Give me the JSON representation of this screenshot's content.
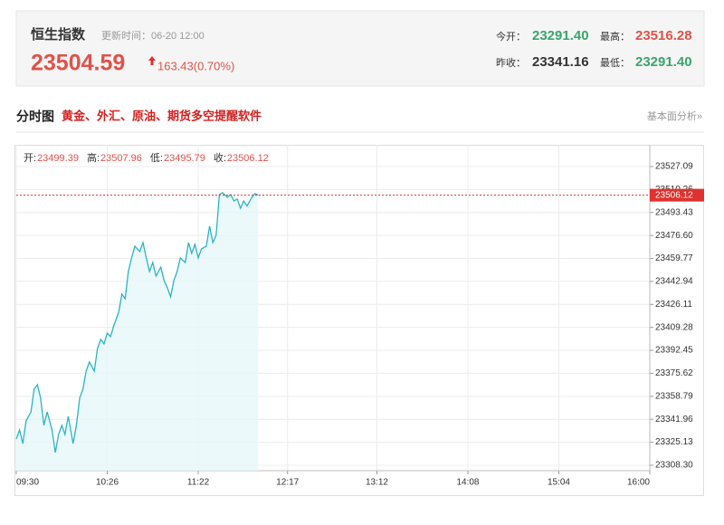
{
  "header": {
    "title": "恒生指数",
    "update": "更新时间：06-20 12:00",
    "price": "23504.59",
    "change": "163.43(0.70%)",
    "open_label": "今开：",
    "open": "23291.40",
    "high_label": "最高：",
    "high": "23516.28",
    "prev_label": "昨收：",
    "prev": "23341.16",
    "low_label": "最低：",
    "low": "23291.40"
  },
  "section": {
    "title": "分时图",
    "promo": "黄金、外汇、原油、期货多空提醒软件",
    "link": "基本面分析»"
  },
  "chart_data": {
    "type": "line",
    "color": "#2bb5c2",
    "area": true,
    "grid": true,
    "summary": [
      {
        "label": "开:",
        "value": 23499.39
      },
      {
        "label": "高:",
        "value": 23507.96
      },
      {
        "label": "低:",
        "value": 23495.79
      },
      {
        "label": "收:",
        "value": 23506.12
      }
    ],
    "reference_line": {
      "value": 23506.12,
      "color": "#e0312e"
    },
    "x": [
      570,
      572,
      574,
      576,
      579,
      581,
      583,
      585,
      587,
      589,
      592,
      594,
      596,
      598,
      600,
      602,
      605,
      607,
      609,
      611,
      613,
      615,
      618,
      620,
      622,
      624,
      626,
      628,
      630,
      633,
      635,
      637,
      639,
      641,
      643,
      646,
      648,
      650,
      652,
      654,
      656,
      659,
      661,
      663,
      665,
      667,
      669,
      671,
      674,
      676,
      678,
      680,
      682,
      684,
      687,
      689,
      691,
      693,
      695,
      697,
      700,
      702,
      704,
      706,
      708,
      710,
      712,
      715,
      717,
      719
    ],
    "values": [
      23327.5,
      23334.2,
      23324.2,
      23340.8,
      23347.4,
      23364.0,
      23367.3,
      23357.4,
      23337.5,
      23347.4,
      23334.2,
      23317.6,
      23330.8,
      23337.5,
      23330.8,
      23344.1,
      23324.2,
      23337.5,
      23357.4,
      23364.0,
      23377.3,
      23383.9,
      23377.3,
      23393.8,
      23400.5,
      23397.2,
      23405.1,
      23402.5,
      23410.4,
      23420.4,
      23433.6,
      23430.3,
      23450.2,
      23460.2,
      23468.8,
      23464.8,
      23471.4,
      23460.2,
      23450.2,
      23456.8,
      23446.9,
      23453.5,
      23443.6,
      23438.3,
      23431.6,
      23443.6,
      23450.2,
      23460.2,
      23456.8,
      23471.4,
      23463.5,
      23470.1,
      23460.2,
      23466.8,
      23468.8,
      23483.4,
      23471.4,
      23476.7,
      23506.6,
      23507.9,
      23504.6,
      23506.6,
      23501.9,
      23503.3,
      23496.6,
      23501.9,
      23498.2,
      23504.6,
      23507.3,
      23506.12
    ],
    "xlim": [
      570,
      960
    ],
    "xticks": [
      {
        "value": 570,
        "label": "09:30"
      },
      {
        "value": 626,
        "label": "10:26"
      },
      {
        "value": 682,
        "label": "11:22"
      },
      {
        "value": 737,
        "label": "12:17"
      },
      {
        "value": 792,
        "label": "13:12"
      },
      {
        "value": 848,
        "label": "14:08"
      },
      {
        "value": 904,
        "label": "15:04"
      },
      {
        "value": 960,
        "label": "16:00"
      }
    ],
    "ylim": [
      23304.3,
      23543.0
    ],
    "yticks": [
      {
        "value": 23308.3,
        "label": "23308.30"
      },
      23325.13,
      23341.96,
      23358.79,
      23375.62,
      23392.45,
      23409.28,
      23426.11,
      23442.94,
      23459.77,
      {
        "value": 23476.6,
        "label": "23476.60"
      },
      23493.43,
      23510.26,
      23527.09
    ]
  }
}
